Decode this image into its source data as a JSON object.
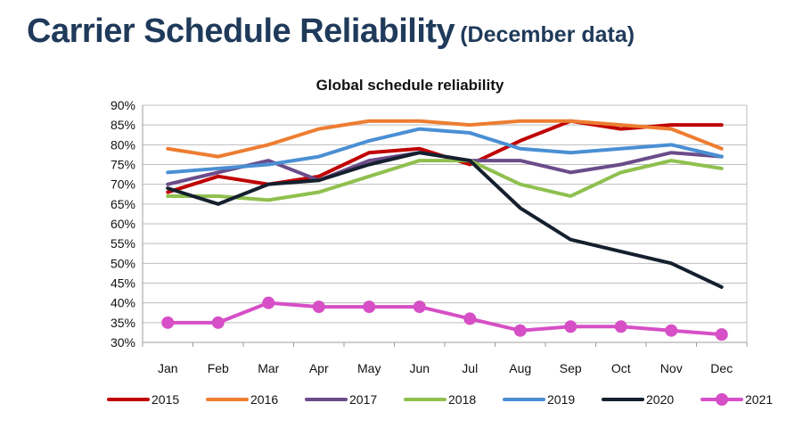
{
  "page": {
    "title": "Carrier Schedule Reliability",
    "subtitle": "(December data)"
  },
  "chart_data": {
    "type": "line",
    "title": "Global schedule reliability",
    "xlabel": "",
    "ylabel": "",
    "categories": [
      "Jan",
      "Feb",
      "Mar",
      "Apr",
      "May",
      "Jun",
      "Jul",
      "Aug",
      "Sep",
      "Oct",
      "Nov",
      "Dec"
    ],
    "yticks": [
      "30%",
      "35%",
      "40%",
      "45%",
      "50%",
      "55%",
      "60%",
      "65%",
      "70%",
      "75%",
      "80%",
      "85%",
      "90%"
    ],
    "ylim": [
      30,
      90
    ],
    "grid": true,
    "legend": "bottom",
    "series": [
      {
        "name": "2015",
        "color": "#c00000",
        "marker": false,
        "values": [
          68,
          72,
          70,
          72,
          78,
          79,
          75,
          81,
          86,
          84,
          85,
          85
        ]
      },
      {
        "name": "2016",
        "color": "#ed7d31",
        "marker": false,
        "values": [
          79,
          77,
          80,
          84,
          86,
          86,
          85,
          86,
          86,
          85,
          84,
          79
        ]
      },
      {
        "name": "2017",
        "color": "#6b4c8a",
        "marker": false,
        "values": [
          70,
          73,
          76,
          71,
          76,
          78,
          76,
          76,
          73,
          75,
          78,
          77
        ]
      },
      {
        "name": "2018",
        "color": "#8fc04f",
        "marker": false,
        "values": [
          67,
          67,
          66,
          68,
          72,
          76,
          76,
          70,
          67,
          73,
          76,
          74
        ]
      },
      {
        "name": "2019",
        "color": "#4a8fd4",
        "marker": false,
        "values": [
          73,
          74,
          75,
          77,
          81,
          84,
          83,
          79,
          78,
          79,
          80,
          77
        ]
      },
      {
        "name": "2020",
        "color": "#15202e",
        "marker": false,
        "values": [
          69,
          65,
          70,
          71,
          75,
          78,
          76,
          64,
          56,
          53,
          50,
          44
        ]
      },
      {
        "name": "2021",
        "color": "#d64fc6",
        "marker": true,
        "values": [
          35,
          35,
          40,
          39,
          39,
          39,
          36,
          33,
          34,
          34,
          33,
          32
        ]
      }
    ]
  }
}
